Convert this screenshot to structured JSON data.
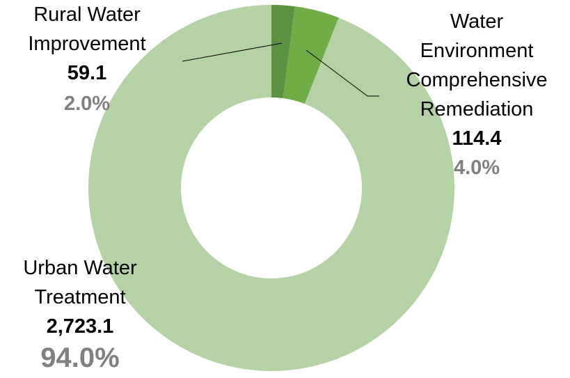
{
  "chart_data": {
    "type": "donut",
    "categories": [
      "Rural Water Improvement",
      "Water Environment Comprehensive Remediation",
      "Urban Water Treatment"
    ],
    "values": [
      59.1,
      114.4,
      2723.1
    ],
    "value_labels": [
      "59.1",
      "114.4",
      "2,723.1"
    ],
    "percent_labels": [
      "2.0%",
      "4.0%",
      "94.0%"
    ],
    "colors": [
      "#5b9140",
      "#70ad47",
      "#b4d2a5"
    ]
  }
}
